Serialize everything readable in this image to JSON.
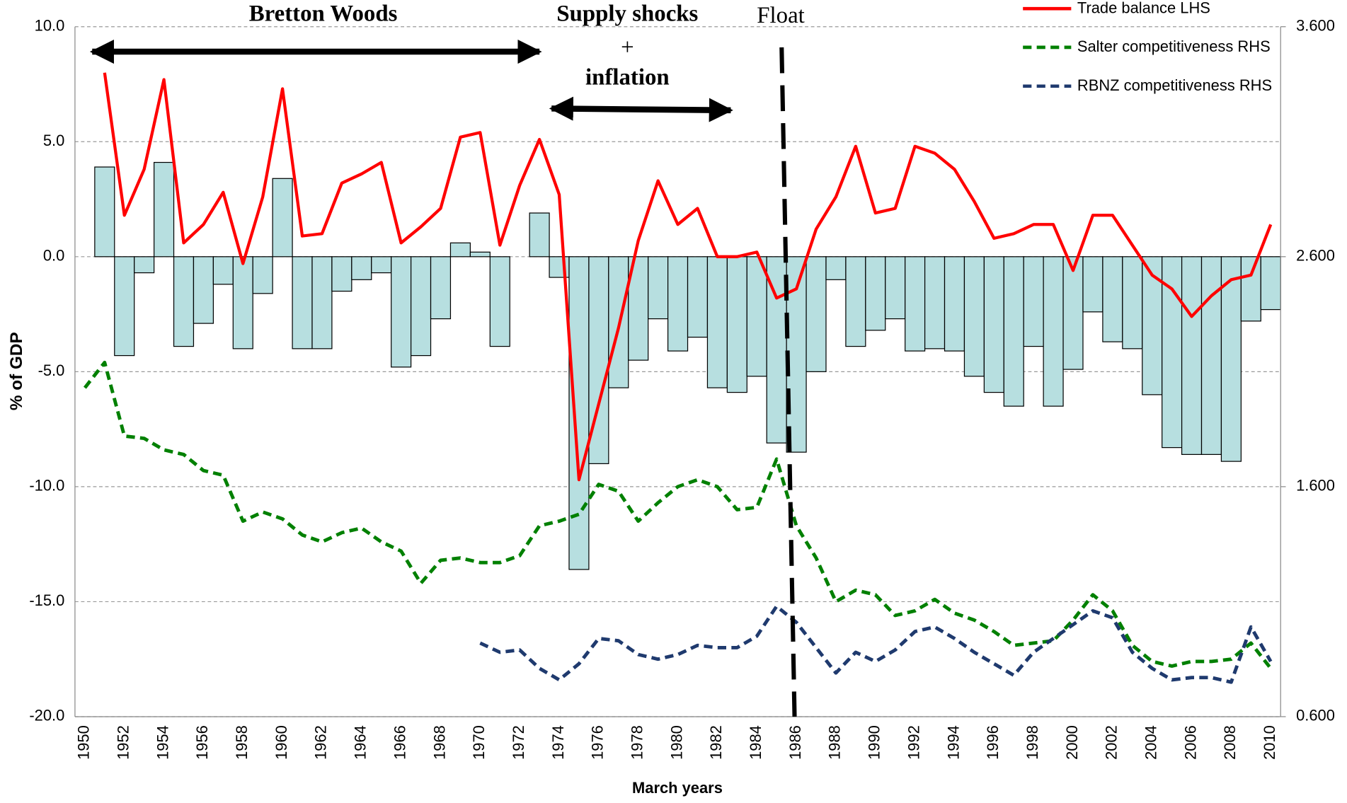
{
  "chart_data": {
    "type": "bar",
    "x_label": "March years",
    "y_label": "% of GDP",
    "annotations": [
      "Bretton Woods",
      "Supply shocks",
      "+",
      "inflation",
      "Float"
    ],
    "categories": [
      "1950",
      null,
      "1952",
      null,
      "1954",
      null,
      "1956",
      null,
      "1958",
      null,
      "1960",
      null,
      "1962",
      null,
      "1964",
      null,
      "1966",
      null,
      "1968",
      null,
      "1970",
      null,
      "1972",
      null,
      "1974",
      null,
      "1976",
      null,
      "1978",
      null,
      "1980",
      null,
      "1982",
      null,
      "1984",
      null,
      "1986",
      null,
      "1988",
      null,
      "1990",
      null,
      "1992",
      null,
      "1994",
      null,
      "1996",
      null,
      "1998",
      null,
      "2000",
      null,
      "2002",
      null,
      "2004",
      null,
      "2006",
      null,
      "2008",
      null,
      "2010"
    ],
    "ylim": [
      -20,
      10
    ],
    "yticks": [
      {
        "value": -20,
        "label": "-20.0"
      },
      {
        "value": -15,
        "label": "-15.0"
      },
      {
        "value": -10,
        "label": "-10.0"
      },
      {
        "value": -5,
        "label": "-5.0"
      },
      {
        "value": 0,
        "label": "0.0"
      },
      {
        "value": 5,
        "label": "5.0"
      },
      {
        "value": 10,
        "label": "10.0"
      }
    ],
    "y2lim": [
      0.6,
      3.6
    ],
    "y2ticks": [
      {
        "value": 0.6,
        "label": "0.600"
      },
      {
        "value": 1.6,
        "label": "1.600"
      },
      {
        "value": 2.6,
        "label": "2.600"
      },
      {
        "value": 3.6,
        "label": "3.600"
      }
    ],
    "grid": true,
    "series": [
      {
        "type": "bar",
        "color": "#b7dfe0",
        "values": [
          null,
          3.9,
          -4.3,
          -0.7,
          4.1,
          -3.9,
          -2.9,
          -1.2,
          -4.0,
          -1.6,
          3.4,
          -4.0,
          -4.0,
          -1.5,
          -1.0,
          -0.7,
          -4.8,
          -4.3,
          -2.7,
          0.6,
          0.2,
          -3.9,
          0.0,
          1.9,
          -0.9,
          -13.6,
          -9.0,
          -5.7,
          -4.5,
          -2.7,
          -4.1,
          -3.5,
          -5.7,
          -5.9,
          -5.2,
          -8.1,
          -8.5,
          -5.0,
          -1.0,
          -3.9,
          -3.2,
          -2.7,
          -4.1,
          -4.0,
          -4.1,
          -5.2,
          -5.9,
          -6.5,
          -3.9,
          -6.5,
          -4.9,
          -2.4,
          -3.7,
          -4.0,
          -6.0,
          -8.3,
          -8.6,
          -8.6,
          -8.9,
          -2.8,
          -2.3
        ]
      },
      {
        "type": "line",
        "name": "Trade balance LHS",
        "color": "#ff0000",
        "dashed": false,
        "values": [
          null,
          8.0,
          1.8,
          3.8,
          7.7,
          0.6,
          1.4,
          2.8,
          -0.3,
          2.6,
          7.3,
          0.9,
          1.0,
          3.2,
          3.6,
          4.1,
          0.6,
          1.3,
          2.1,
          5.2,
          5.4,
          0.5,
          3.1,
          5.1,
          2.7,
          -9.7,
          -6.4,
          -3.1,
          0.7,
          3.3,
          1.4,
          2.1,
          0.0,
          0.0,
          0.2,
          -1.8,
          -1.4,
          1.2,
          2.6,
          4.8,
          1.9,
          2.1,
          4.8,
          4.5,
          3.8,
          2.4,
          0.8,
          1.0,
          1.4,
          1.4,
          -0.6,
          1.8,
          1.8,
          0.5,
          -0.8,
          -1.4,
          -2.6,
          -1.7,
          -1.0,
          -0.8,
          1.4
        ]
      },
      {
        "type": "line",
        "name": "Salter competitiveness RHS",
        "color": "#008000",
        "dashed": true,
        "axis": "y2",
        "values": [
          2.03,
          2.14,
          1.82,
          1.81,
          1.76,
          1.74,
          1.67,
          1.65,
          1.45,
          1.49,
          1.46,
          1.39,
          1.36,
          1.4,
          1.42,
          1.36,
          1.32,
          1.18,
          1.28,
          1.29,
          1.27,
          1.27,
          1.3,
          1.43,
          1.45,
          1.48,
          1.61,
          1.58,
          1.45,
          1.53,
          1.6,
          1.63,
          1.6,
          1.5,
          1.51,
          1.72,
          1.43,
          1.29,
          1.1,
          1.15,
          1.13,
          1.04,
          1.06,
          1.11,
          1.05,
          1.02,
          0.97,
          0.91,
          0.92,
          0.93,
          1.02,
          1.13,
          1.06,
          0.91,
          0.84,
          0.82,
          0.84,
          0.84,
          0.85,
          0.92,
          0.81
        ]
      },
      {
        "type": "line",
        "name": "RBNZ competitiveness RHS",
        "color": "#1f3a6e",
        "dashed": true,
        "axis": "y2",
        "values": [
          null,
          null,
          null,
          null,
          null,
          null,
          null,
          null,
          null,
          null,
          null,
          null,
          null,
          null,
          null,
          null,
          null,
          null,
          null,
          null,
          0.92,
          0.88,
          0.89,
          0.81,
          0.76,
          0.83,
          0.94,
          0.93,
          0.87,
          0.85,
          0.87,
          0.91,
          0.9,
          0.9,
          0.95,
          1.08,
          1.01,
          0.9,
          0.79,
          0.88,
          0.84,
          0.89,
          0.97,
          0.99,
          0.94,
          0.88,
          0.83,
          0.78,
          0.88,
          0.94,
          1.0,
          1.06,
          1.03,
          0.88,
          0.81,
          0.76,
          0.77,
          0.77,
          0.75,
          0.99,
          0.84
        ]
      }
    ]
  }
}
